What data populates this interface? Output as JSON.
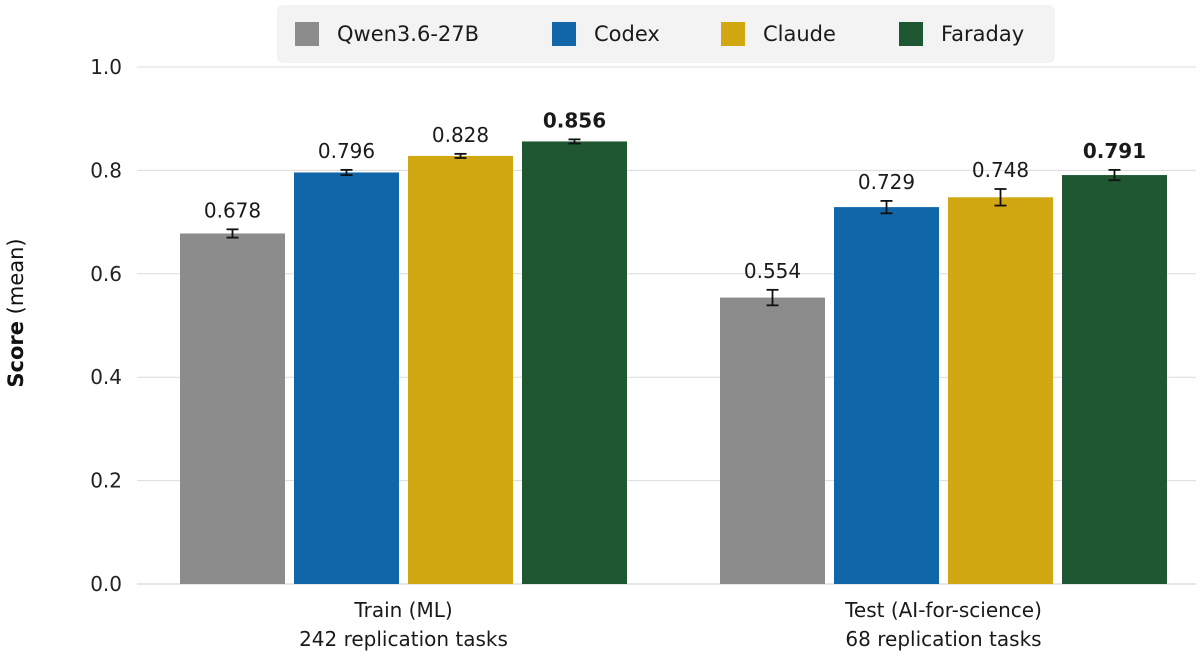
{
  "chart_data": {
    "type": "bar",
    "categories": [
      {
        "line1": "Train (ML)",
        "line2": "242 replication tasks"
      },
      {
        "line1": "Test (AI-for-science)",
        "line2": "68 replication tasks"
      }
    ],
    "series": [
      {
        "name": "Qwen3.6-27B",
        "color": "#8c8c8c",
        "values": [
          0.678,
          0.554
        ],
        "labels": [
          "0.678",
          "0.554"
        ],
        "error": [
          0.008,
          0.015
        ]
      },
      {
        "name": "Codex",
        "color": "#1166aa",
        "values": [
          0.796,
          0.729
        ],
        "labels": [
          "0.796",
          "0.729"
        ],
        "error": [
          0.005,
          0.012
        ]
      },
      {
        "name": "Claude",
        "color": "#d1a712",
        "values": [
          0.828,
          0.748
        ],
        "labels": [
          "0.828",
          "0.748"
        ],
        "error": [
          0.004,
          0.016
        ]
      },
      {
        "name": "Faraday",
        "color": "#1f5733",
        "values": [
          0.856,
          0.791
        ],
        "labels": [
          "0.856",
          "0.791"
        ],
        "error": [
          0.004,
          0.01
        ],
        "bold_labels": true
      }
    ],
    "ylabel_bold": "Score",
    "ylabel_rest": "(mean)",
    "ylim": [
      0,
      1.0
    ],
    "yticks": [
      "0.0",
      "0.2",
      "0.4",
      "0.6",
      "0.8",
      "1.0"
    ],
    "grid": true,
    "legend_position": "top-center"
  }
}
